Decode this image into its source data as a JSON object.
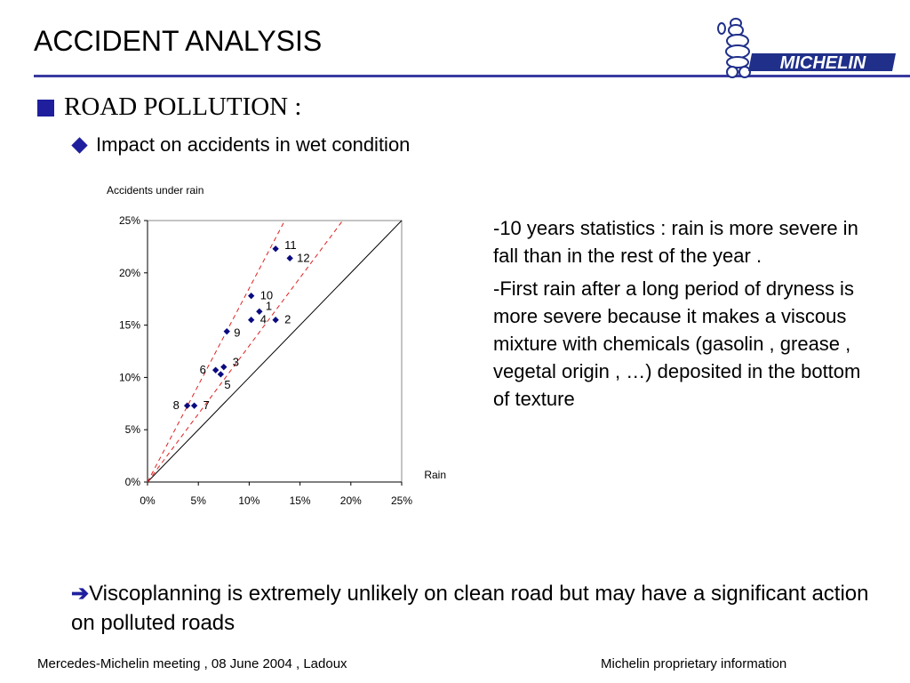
{
  "slide": {
    "title": "ACCIDENT ANALYSIS",
    "logo_text": "MICHELIN",
    "bullet_level1": "ROAD POLLUTION :",
    "bullet_level2": "Impact on accidents in wet condition",
    "notes": [
      "-10 years statistics : rain is more severe in fall than in the rest of the year .",
      "-First rain after a long period of dryness is more severe because it makes a viscous mixture with chemicals (gasolin , grease , vegetal origin , …)  deposited in the bottom of texture"
    ],
    "conclusion_arrow": "➔",
    "conclusion": "Viscoplanning is extremely unlikely on clean road but may have a significant action on polluted roads",
    "footer_left": "Mercedes-Michelin meeting , 08 June 2004 , Ladoux",
    "footer_right": "Michelin proprietary information",
    "colors": {
      "accent": "#1f1f9e",
      "rule": "#3a3aa0",
      "point": "#0a0a80",
      "trend": "#e02020"
    }
  },
  "chart_data": {
    "type": "scatter",
    "title": "Accidents under rain",
    "xlabel": "Rain",
    "ylabel": "",
    "xlim": [
      0,
      25
    ],
    "ylim": [
      0,
      25
    ],
    "xticks": [
      "0%",
      "5%",
      "10%",
      "15%",
      "20%",
      "25%"
    ],
    "yticks": [
      "0%",
      "5%",
      "10%",
      "15%",
      "20%",
      "25%"
    ],
    "tick_values": [
      0,
      5,
      10,
      15,
      20,
      25
    ],
    "grid": false,
    "points": [
      {
        "label": "1",
        "x": 11.0,
        "y": 16.3
      },
      {
        "label": "2",
        "x": 12.6,
        "y": 15.5
      },
      {
        "label": "3",
        "x": 7.5,
        "y": 11.0
      },
      {
        "label": "4",
        "x": 10.2,
        "y": 15.5
      },
      {
        "label": "5",
        "x": 7.2,
        "y": 10.3
      },
      {
        "label": "6",
        "x": 6.7,
        "y": 10.7
      },
      {
        "label": "7",
        "x": 4.6,
        "y": 7.3
      },
      {
        "label": "8",
        "x": 3.9,
        "y": 7.3
      },
      {
        "label": "9",
        "x": 7.8,
        "y": 14.4
      },
      {
        "label": "10",
        "x": 10.2,
        "y": 17.8
      },
      {
        "label": "11",
        "x": 12.6,
        "y": 22.3
      },
      {
        "label": "12",
        "x": 14.0,
        "y": 21.4
      }
    ],
    "reference_line": {
      "from": [
        0,
        0
      ],
      "to": [
        25,
        25
      ]
    },
    "trend_lines": [
      {
        "from": [
          0,
          0
        ],
        "to": [
          13.5,
          25
        ]
      },
      {
        "from": [
          0,
          0
        ],
        "to": [
          19.2,
          25
        ]
      }
    ]
  }
}
